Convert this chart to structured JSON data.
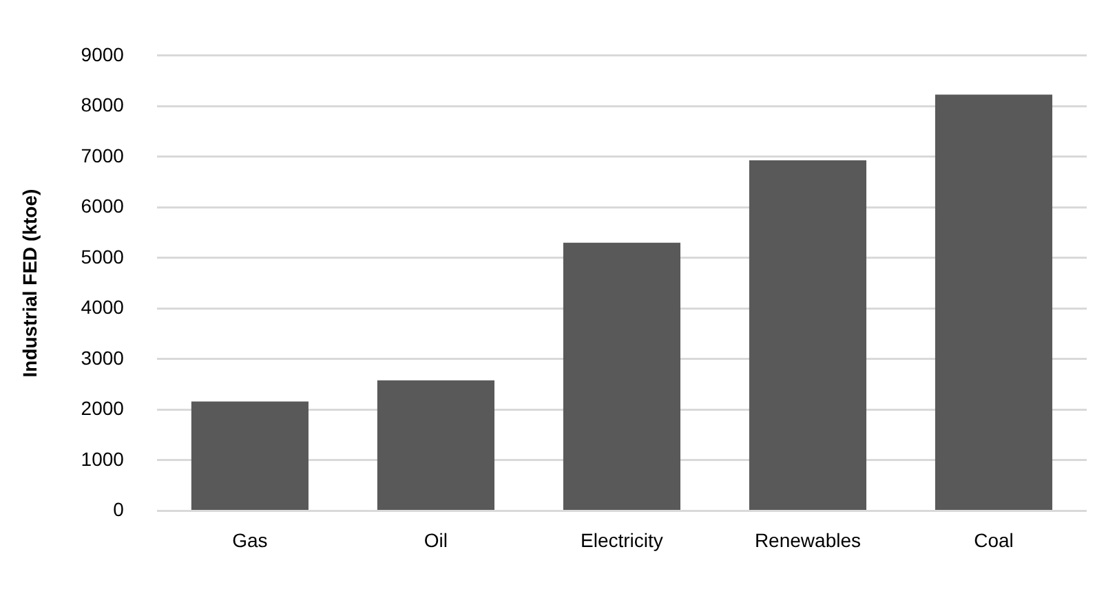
{
  "chart_data": {
    "type": "bar",
    "ylabel": "Industrial FED (ktoe)",
    "categories": [
      "Gas",
      "Oil",
      "Electricity",
      "Renewables",
      "Coal"
    ],
    "values": [
      2160,
      2580,
      5300,
      6930,
      8230
    ],
    "color": "#595959",
    "ylim": [
      0,
      9000
    ],
    "yticks": [
      0,
      1000,
      2000,
      3000,
      4000,
      5000,
      6000,
      7000,
      8000,
      9000
    ],
    "grid": "y",
    "legend": false
  }
}
